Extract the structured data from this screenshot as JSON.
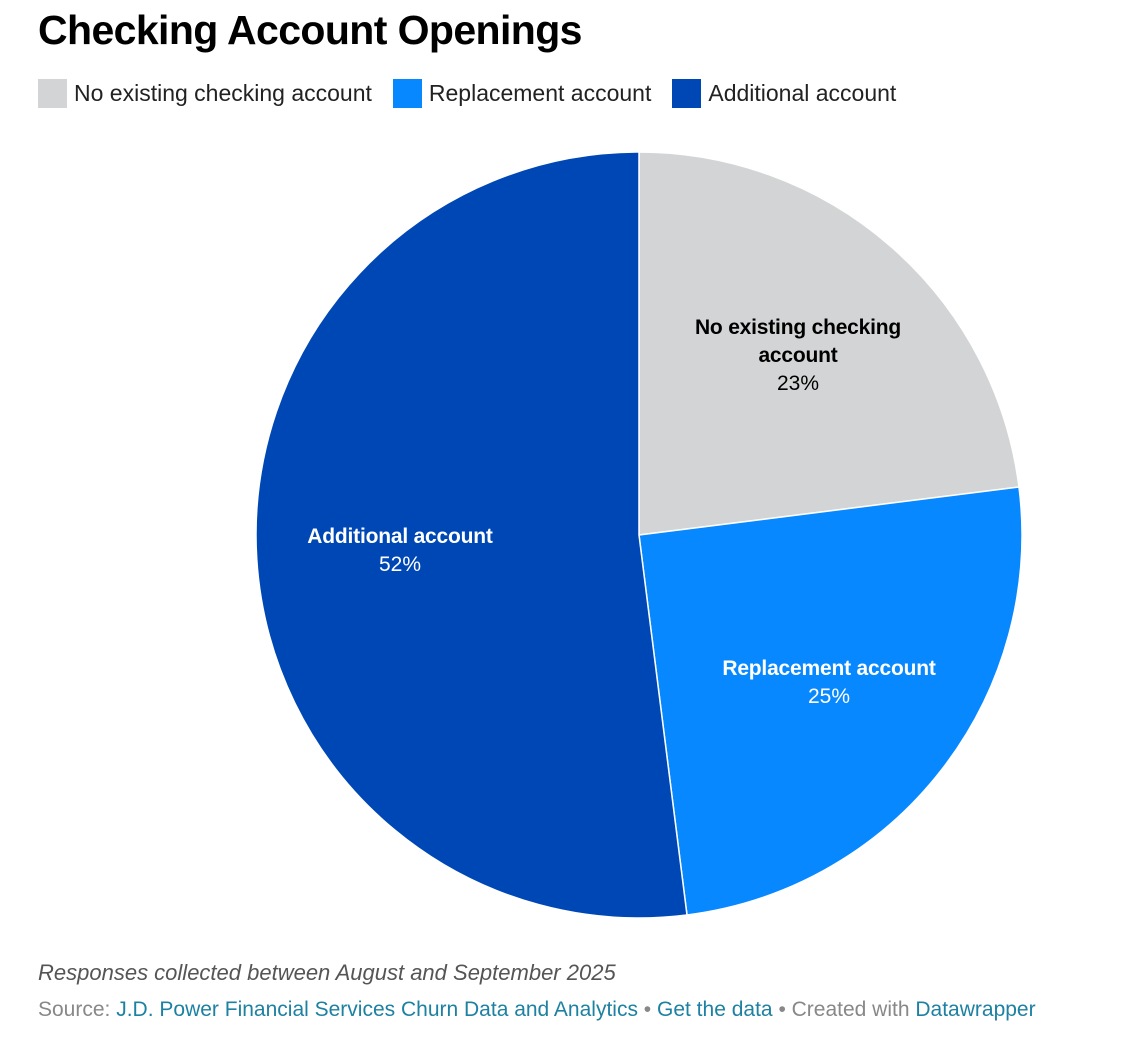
{
  "chart_data": {
    "type": "pie",
    "title": "Checking Account Openings",
    "categories": [
      "No existing checking account",
      "Replacement account",
      "Additional account"
    ],
    "values": [
      23,
      25,
      52
    ],
    "value_labels": [
      "23%",
      "25%",
      "52%"
    ],
    "colors": [
      "#d3d4d5",
      "#0888ff",
      "#0047b6"
    ],
    "label_colors": [
      "#000000",
      "#ffffff",
      "#ffffff"
    ],
    "legend_placement": "top-left",
    "slice_labels": [
      {
        "lines": [
          "No existing checking",
          "account"
        ],
        "value": "23%"
      },
      {
        "lines": [
          "Replacement account"
        ],
        "value": "25%"
      },
      {
        "lines": [
          "Additional account"
        ],
        "value": "52%"
      }
    ]
  },
  "legend": {
    "items": [
      {
        "label": "No existing checking account",
        "color": "#d3d4d5"
      },
      {
        "label": "Replacement account",
        "color": "#0888ff"
      },
      {
        "label": "Additional account",
        "color": "#0047b6"
      }
    ]
  },
  "footer": {
    "notes": "Responses collected between August and September 2025",
    "source_prefix": "Source:",
    "source_link": "J.D. Power Financial Services Churn Data and Analytics",
    "separator": "•",
    "get_data": "Get the data",
    "created_with": "Created with",
    "tool_name": "Datawrapper"
  }
}
